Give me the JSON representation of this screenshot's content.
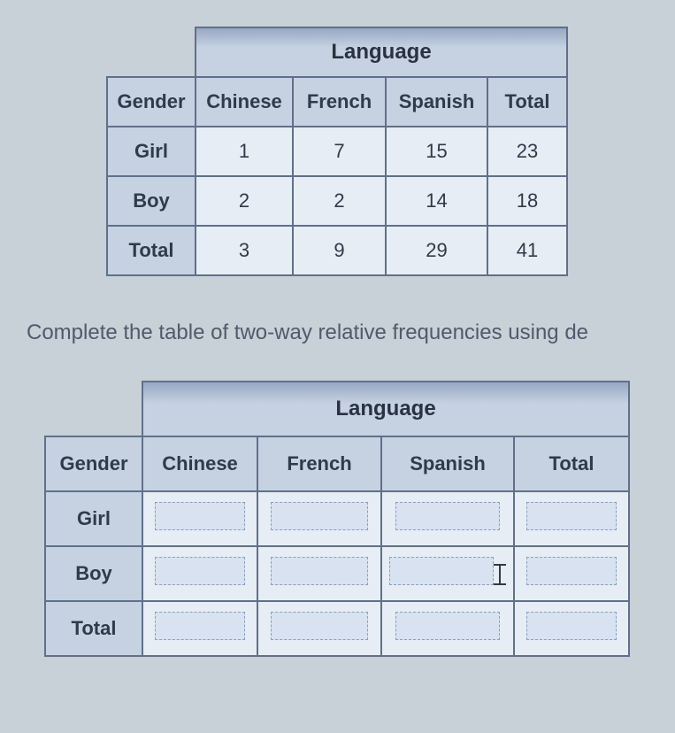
{
  "table1": {
    "header_span": "Language",
    "cols": [
      "Gender",
      "Chinese",
      "French",
      "Spanish",
      "Total"
    ],
    "rows": [
      {
        "label": "Girl",
        "vals": [
          "1",
          "7",
          "15",
          "23"
        ]
      },
      {
        "label": "Boy",
        "vals": [
          "2",
          "2",
          "14",
          "18"
        ]
      },
      {
        "label": "Total",
        "vals": [
          "3",
          "9",
          "29",
          "41"
        ]
      }
    ]
  },
  "instruction": "Complete the table of two-way relative frequencies using de",
  "table2": {
    "header_span": "Language",
    "cols": [
      "Gender",
      "Chinese",
      "French",
      "Spanish",
      "Total"
    ],
    "rows": [
      {
        "label": "Girl"
      },
      {
        "label": "Boy"
      },
      {
        "label": "Total"
      }
    ]
  },
  "colors": {
    "page_bg": "#c8d0d8",
    "border": "#60708a",
    "header_bg": "#c6d2e2",
    "data_bg": "#e6edf5",
    "text": "#303a48"
  }
}
